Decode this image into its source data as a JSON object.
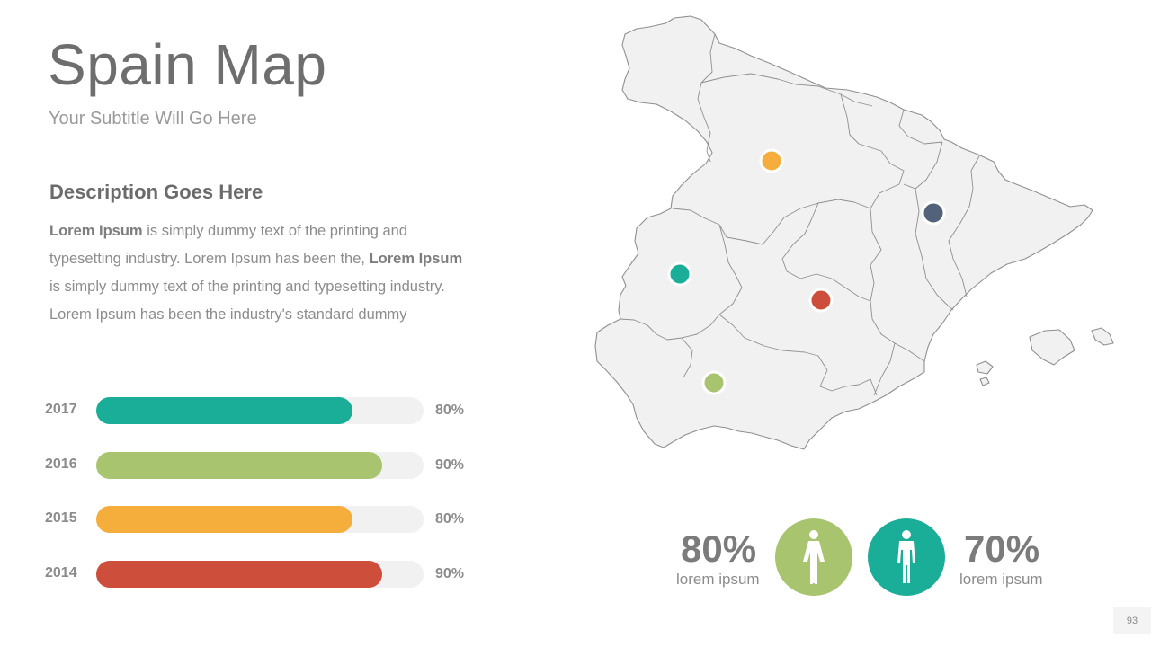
{
  "slide": {
    "title": "Spain Map",
    "subtitle": "Your Subtitle Will Go Here",
    "page_number": "93"
  },
  "description": {
    "heading": "Description Goes Here",
    "segments": [
      {
        "bold": "Lorem Ipsum"
      },
      {
        "text": " is simply dummy text of the printing and typesetting industry. Lorem Ipsum has been the, "
      },
      {
        "bold": "Lorem Ipsum"
      },
      {
        "text": " is simply dummy text of the printing and typesetting industry. Lorem Ipsum has been the industry's standard dummy"
      }
    ]
  },
  "bars": [
    {
      "year": "2017",
      "value": 80,
      "label": "80%",
      "color": "#1aad97"
    },
    {
      "year": "2016",
      "value": 90,
      "label": "90%",
      "color": "#a8c46e"
    },
    {
      "year": "2015",
      "value": 80,
      "label": "80%",
      "color": "#f5ad3b"
    },
    {
      "year": "2014",
      "value": 90,
      "label": "90%",
      "color": "#cc4e3b"
    }
  ],
  "map": {
    "region": "Spain",
    "fill": "#f1f1f1",
    "stroke": "#8f8f8f",
    "markers": [
      {
        "name": "north-marker",
        "color": "#f5ad3b"
      },
      {
        "name": "northeast-marker",
        "color": "#51627a"
      },
      {
        "name": "west-marker",
        "color": "#1aad97"
      },
      {
        "name": "center-marker",
        "color": "#cc4e3b"
      },
      {
        "name": "south-marker",
        "color": "#a8c46e"
      }
    ]
  },
  "stats": {
    "female": {
      "value": "80%",
      "label": "lorem ipsum",
      "color": "#a8c46e",
      "icon": "female-person-icon"
    },
    "male": {
      "value": "70%",
      "label": "lorem ipsum",
      "color": "#1aad97",
      "icon": "male-person-icon"
    }
  }
}
